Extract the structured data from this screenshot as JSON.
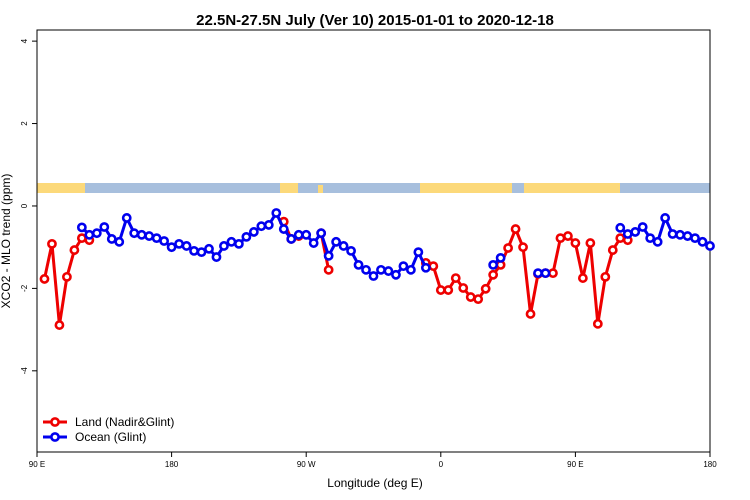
{
  "chart_data": {
    "type": "line",
    "title": "22.5N-27.5N July (Ver 10)   2015-01-01 to 2020-12-18",
    "xlabel": "Longitude (deg E)",
    "ylabel": "XCO2 - MLO trend (ppm)",
    "xlim": [
      90,
      540
    ],
    "ylim": [
      -5.97,
      4.27
    ],
    "xticks": [
      {
        "value": 90,
        "label": "90 E"
      },
      180,
      {
        "value": 270,
        "label": "90 W"
      },
      {
        "value": 360,
        "label": "0"
      },
      {
        "value": 450,
        "label": "90 E"
      },
      {
        "value": 540,
        "label": "180"
      }
    ],
    "yticks": [
      -4,
      -2,
      0,
      2,
      4
    ],
    "legend": "bottomleft",
    "series": [
      {
        "name": "Land (Nadir&Glint)",
        "color": "#ee0000",
        "x": [
          95,
          100,
          105,
          110,
          115,
          120,
          125,
          130,
          255,
          260,
          265,
          270,
          280,
          285,
          290,
          350,
          355,
          360,
          365,
          370,
          375,
          380,
          385,
          390,
          395,
          400,
          405,
          410,
          415,
          420,
          425,
          430,
          435,
          440,
          445,
          450,
          455,
          460,
          465,
          470,
          475,
          480,
          485
        ],
        "values": [
          -1.77,
          -0.92,
          -2.89,
          -1.72,
          -1.07,
          -0.78,
          -0.83,
          null,
          -0.38,
          -0.8,
          -0.73,
          null,
          -0.66,
          -1.55,
          null,
          -1.38,
          -1.46,
          -2.04,
          -2.04,
          -1.75,
          -1.99,
          -2.21,
          -2.26,
          -2.01,
          -1.67,
          -1.43,
          -1.02,
          -0.56,
          -1.0,
          -2.62,
          -1.65,
          -1.63,
          -1.63,
          -0.78,
          -0.73,
          -0.9,
          -1.75,
          -0.9,
          -2.86,
          -1.72,
          -1.07,
          -0.78,
          -0.83
        ]
      },
      {
        "name": "Ocean (Glint)",
        "color": "#0000ee",
        "x": [
          120,
          125,
          130,
          135,
          140,
          145,
          150,
          155,
          160,
          165,
          170,
          175,
          180,
          185,
          190,
          195,
          200,
          205,
          210,
          215,
          220,
          225,
          230,
          235,
          240,
          245,
          250,
          255,
          260,
          265,
          270,
          275,
          280,
          285,
          290,
          295,
          300,
          305,
          310,
          315,
          320,
          325,
          330,
          335,
          340,
          345,
          350,
          355,
          395,
          400,
          405,
          425,
          430,
          435,
          480,
          485,
          490,
          495,
          500,
          505,
          510,
          515,
          520,
          525,
          530,
          535,
          540
        ],
        "values": [
          -0.52,
          -0.7,
          -0.66,
          -0.51,
          -0.8,
          -0.87,
          -0.29,
          -0.66,
          -0.7,
          -0.73,
          -0.78,
          -0.85,
          -1.0,
          -0.92,
          -0.97,
          -1.09,
          -1.12,
          -1.04,
          -1.24,
          -0.97,
          -0.87,
          -0.92,
          -0.75,
          -0.63,
          -0.49,
          -0.46,
          -0.17,
          -0.56,
          -0.8,
          -0.7,
          -0.7,
          -0.9,
          -0.66,
          -1.21,
          -0.87,
          -0.97,
          -1.09,
          -1.43,
          -1.55,
          -1.7,
          -1.55,
          -1.58,
          -1.67,
          -1.46,
          -1.55,
          -1.12,
          -1.5,
          null,
          -1.43,
          -1.26,
          null,
          -1.63,
          -1.63,
          null,
          -0.53,
          -0.68,
          -0.63,
          -0.51,
          -0.78,
          -0.87,
          -0.29,
          -0.68,
          -0.7,
          -0.73,
          -0.78,
          -0.87,
          -0.97
        ]
      }
    ]
  }
}
